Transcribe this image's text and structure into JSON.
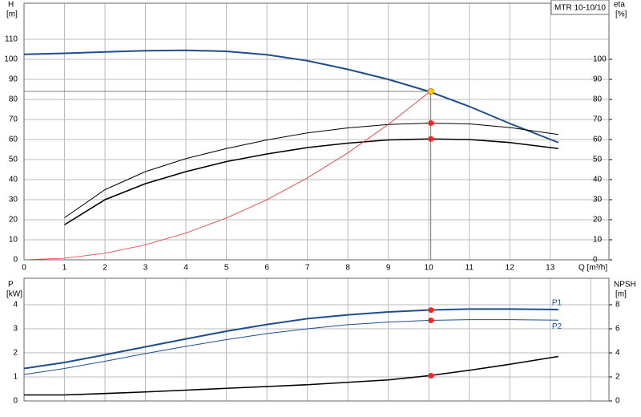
{
  "chart_data": [
    {
      "type": "line",
      "title": "MTR 10-10/10",
      "y_label": "H",
      "y_unit": "[m]",
      "y2_label": "eta",
      "y2_unit": "[%]",
      "x_label": "Q [m³/h]",
      "xlim": [
        0,
        14.45
      ],
      "xticks": [
        0,
        1,
        2,
        3,
        4,
        5,
        6,
        7,
        8,
        9,
        10,
        11,
        12,
        13
      ],
      "ylim": [
        0,
        128
      ],
      "yticks": [
        0,
        10,
        20,
        30,
        40,
        50,
        60,
        70,
        80,
        90,
        100,
        110
      ],
      "y2lim": [
        0,
        128
      ],
      "y2ticks": [
        0,
        10,
        20,
        30,
        40,
        50,
        60,
        70,
        80,
        90,
        100
      ],
      "grid": true,
      "series": [
        {
          "color": "#1f4e8c",
          "width": 2,
          "x": [
            0,
            1,
            2,
            3,
            4,
            5,
            6,
            7,
            8,
            9,
            10,
            11,
            12,
            13.2
          ],
          "values": [
            102.5,
            103,
            103.7,
            104.3,
            104.5,
            104,
            102.3,
            99.3,
            95,
            90,
            84,
            76.5,
            68,
            58.5
          ]
        },
        {
          "color": "#000000",
          "width": 1,
          "axis": "y2",
          "x": [
            1,
            2,
            3,
            4,
            5,
            6,
            7,
            8,
            9,
            10,
            11,
            12,
            13.2
          ],
          "values": [
            21,
            35,
            44,
            50.5,
            55.5,
            59.8,
            63.3,
            65.8,
            67.5,
            68.2,
            67.8,
            66,
            62.5
          ]
        },
        {
          "color": "#000000",
          "width": 1.6,
          "axis": "y2",
          "x": [
            1,
            2,
            3,
            4,
            5,
            6,
            7,
            8,
            9,
            10,
            11,
            12,
            13.2
          ],
          "values": [
            17.5,
            30,
            38,
            44,
            49,
            52.8,
            56,
            58.2,
            59.8,
            60.3,
            60,
            58.5,
            55.5
          ]
        },
        {
          "color": "#ff3030",
          "width": 0.8,
          "x": [
            0,
            1,
            2,
            3,
            4,
            5,
            6,
            7,
            8,
            9,
            10
          ],
          "values": [
            0,
            0.8,
            3.3,
            7.5,
            13.4,
            20.9,
            30,
            40.9,
            53.4,
            67.6,
            83.5
          ]
        }
      ],
      "operating_point": {
        "x": 10.05,
        "values": [
          84,
          68.2,
          60.3
        ],
        "colors": [
          "#ffd700",
          "#ff2020",
          "#ff2020"
        ]
      }
    },
    {
      "type": "line",
      "y_label": "P",
      "y_unit": "[kW]",
      "y2_label": "NPSH",
      "y2_unit": "[m]",
      "xlim": [
        0,
        14.45
      ],
      "xgrid": [
        0,
        1,
        2,
        3,
        4,
        5,
        6,
        7,
        8,
        9,
        10,
        11,
        12,
        13,
        14
      ],
      "ylim": [
        0,
        5.1
      ],
      "yticks": [
        0,
        1,
        2,
        3,
        4
      ],
      "y2lim": [
        0,
        10.2
      ],
      "y2ticks": [
        0,
        2,
        4,
        6,
        8
      ],
      "grid": true,
      "series": [
        {
          "name": "P1",
          "label_position": "above",
          "color": "#1f4e8c",
          "width": 2,
          "x": [
            0,
            1,
            2,
            3,
            4,
            5,
            6,
            7,
            8,
            9,
            10,
            11,
            12,
            13.2
          ],
          "values": [
            1.35,
            1.6,
            1.92,
            2.25,
            2.58,
            2.9,
            3.18,
            3.42,
            3.58,
            3.7,
            3.78,
            3.82,
            3.82,
            3.8
          ]
        },
        {
          "name": "P2",
          "label_position": "below",
          "color": "#1f4e8c",
          "width": 1,
          "x": [
            0,
            1,
            2,
            3,
            4,
            5,
            6,
            7,
            8,
            9,
            10,
            11,
            12,
            13.2
          ],
          "values": [
            1.1,
            1.35,
            1.65,
            1.97,
            2.27,
            2.55,
            2.8,
            3.0,
            3.17,
            3.28,
            3.35,
            3.38,
            3.38,
            3.36
          ]
        },
        {
          "color": "#000000",
          "width": 1.6,
          "axis": "y2",
          "x": [
            0,
            1,
            2,
            3,
            4,
            5,
            6,
            7,
            8,
            9,
            10,
            11,
            12,
            13.2
          ],
          "values": [
            0.5,
            0.5,
            0.62,
            0.75,
            0.9,
            1.05,
            1.2,
            1.35,
            1.55,
            1.75,
            2.1,
            2.55,
            3.05,
            3.7
          ]
        }
      ],
      "operating_point": {
        "x": 10.05,
        "values": [
          3.78,
          3.35
        ],
        "y2_values": [
          2.1
        ],
        "colors": [
          "#ff2020",
          "#ff2020"
        ],
        "y2_colors": [
          "#ff2020"
        ]
      }
    }
  ]
}
